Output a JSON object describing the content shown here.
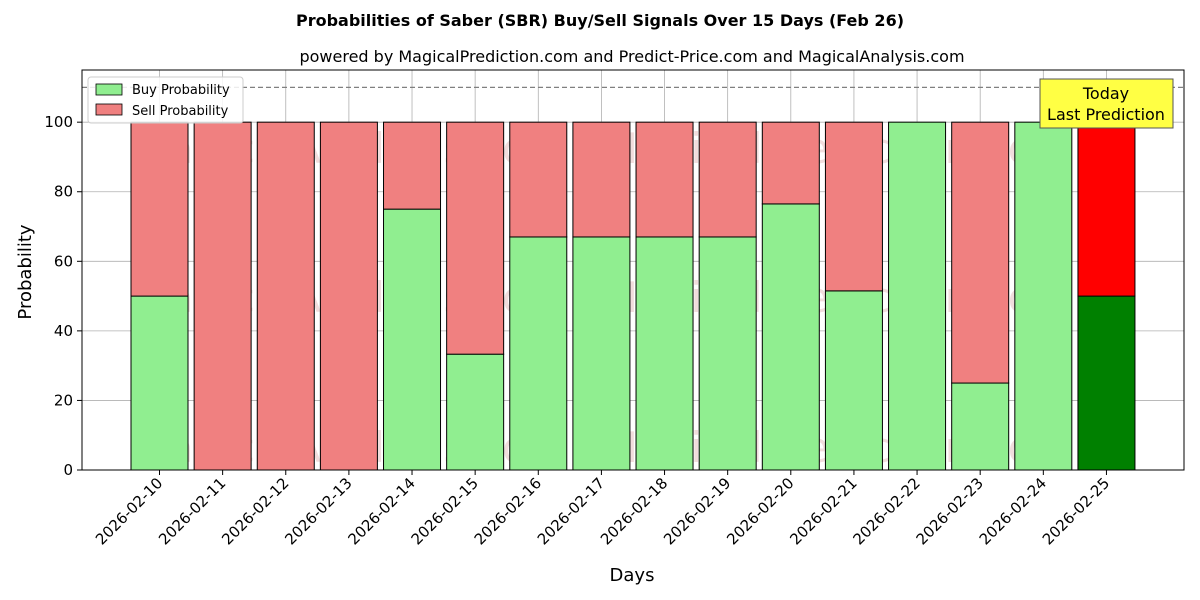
{
  "chart_data": {
    "type": "bar",
    "stacked": true,
    "title": "Probabilities of Saber (SBR) Buy/Sell Signals Over 15 Days (Feb 26)",
    "subtitle": "powered by MagicalPrediction.com and Predict-Price.com and MagicalAnalysis.com",
    "xlabel": "Days",
    "ylabel": "Probability",
    "ylim": [
      0,
      115
    ],
    "yticks": [
      0,
      20,
      40,
      60,
      80,
      100
    ],
    "grid": true,
    "legend_position": "top-left",
    "reference_line": 110,
    "categories": [
      "2026-02-10",
      "2026-02-11",
      "2026-02-12",
      "2026-02-13",
      "2026-02-14",
      "2026-02-15",
      "2026-02-16",
      "2026-02-17",
      "2026-02-18",
      "2026-02-19",
      "2026-02-20",
      "2026-02-21",
      "2026-02-22",
      "2026-02-23",
      "2026-02-24",
      "2026-02-25"
    ],
    "series": [
      {
        "name": "Buy Probability",
        "color": "#90ee90",
        "values": [
          50,
          0,
          0,
          0,
          75,
          33.3,
          67,
          67,
          67,
          67,
          76.5,
          51.5,
          100,
          25,
          100,
          50
        ]
      },
      {
        "name": "Sell Probability",
        "color": "#f08080",
        "values": [
          50,
          100,
          100,
          100,
          25,
          66.7,
          33,
          33,
          33,
          33,
          23.5,
          48.5,
          0,
          75,
          0,
          50
        ]
      }
    ],
    "highlight": {
      "index": 15,
      "buy_color": "#008000",
      "sell_color": "#ff0000"
    },
    "annotation": {
      "lines": [
        "Today",
        "Last Prediction"
      ],
      "bg": "#ffff44"
    },
    "watermarks": [
      "MagicalAnalysis.com",
      "MagicalPrediction.com"
    ]
  }
}
